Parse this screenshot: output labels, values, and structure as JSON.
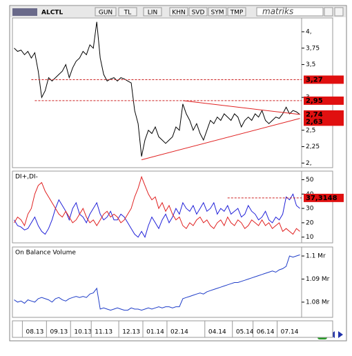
{
  "toolbar": {
    "symbol": "ALCTL",
    "buttons": [
      "GUN",
      "TL",
      "LIN",
      "KHN",
      "SVD",
      "SYM",
      "TMP"
    ],
    "brand": "matriks"
  },
  "chart_data": [
    {
      "type": "line",
      "color": "#000000",
      "ylim": [
        1.93,
        4.21
      ],
      "yticks": [
        {
          "value": 4,
          "label": "4,"
        },
        {
          "value": 3.75,
          "label": "3,75"
        },
        {
          "value": 3.5,
          "label": "3,5"
        },
        {
          "value": 3,
          "label": "3,"
        },
        {
          "value": 2.5,
          "label": "2,5"
        },
        {
          "value": 2.25,
          "label": "2,25"
        },
        {
          "value": 2,
          "label": "2,"
        }
      ],
      "values": [
        3.75,
        3.7,
        3.72,
        3.65,
        3.7,
        3.6,
        3.68,
        3.4,
        3.0,
        3.1,
        3.3,
        3.25,
        3.3,
        3.35,
        3.4,
        3.5,
        3.3,
        3.45,
        3.55,
        3.6,
        3.7,
        3.65,
        3.8,
        3.75,
        4.15,
        3.6,
        3.35,
        3.25,
        3.28,
        3.3,
        3.25,
        3.3,
        3.28,
        3.25,
        3.22,
        2.8,
        2.6,
        2.1,
        2.35,
        2.5,
        2.45,
        2.55,
        2.4,
        2.35,
        2.3,
        2.35,
        2.4,
        2.55,
        2.5,
        2.9,
        2.75,
        2.65,
        2.5,
        2.6,
        2.45,
        2.35,
        2.5,
        2.65,
        2.6,
        2.7,
        2.65,
        2.75,
        2.7,
        2.65,
        2.75,
        2.7,
        2.55,
        2.65,
        2.7,
        2.65,
        2.75,
        2.7,
        2.8,
        2.65,
        2.6,
        2.65,
        2.7,
        2.68,
        2.75,
        2.85,
        2.75,
        2.8,
        2.78,
        2.74
      ],
      "trendline_color": "#e02020",
      "trendlines": [
        {
          "x": [
            49,
            83
          ],
          "y": [
            2.95,
            2.74
          ]
        },
        {
          "x": [
            37,
            83
          ],
          "y": [
            2.05,
            2.68
          ]
        }
      ],
      "levels": [
        {
          "value": 3.27,
          "label": "3,27",
          "dashed": true,
          "start": 5
        },
        {
          "value": 2.95,
          "label": "2,95",
          "dashed": true,
          "start": 6
        },
        {
          "value": 2.74,
          "label": "2,74",
          "dashed": false
        },
        {
          "value": 2.63,
          "label": "2,63",
          "dashed": false
        }
      ]
    },
    {
      "type": "line",
      "title": "DI+,DI-",
      "ylim": [
        6,
        56
      ],
      "yticks": [
        50,
        40,
        30,
        20,
        10
      ],
      "series": [
        {
          "color": "#2020d8",
          "values": [
            22,
            18,
            17,
            15,
            16,
            20,
            24,
            18,
            14,
            12,
            16,
            22,
            30,
            36,
            32,
            28,
            22,
            30,
            34,
            26,
            24,
            20,
            26,
            30,
            34,
            26,
            22,
            24,
            28,
            22,
            22,
            26,
            24,
            20,
            16,
            12,
            10,
            14,
            10,
            18,
            24,
            20,
            16,
            22,
            26,
            20,
            24,
            30,
            26,
            34,
            30,
            28,
            32,
            26,
            30,
            34,
            28,
            30,
            34,
            26,
            30,
            28,
            32,
            26,
            28,
            30,
            24,
            26,
            32,
            28,
            26,
            22,
            24,
            28,
            22,
            20,
            24,
            22,
            26,
            38,
            36,
            40,
            32,
            30
          ]
        },
        {
          "color": "#e02020",
          "values": [
            20,
            24,
            22,
            18,
            26,
            30,
            40,
            46,
            48,
            42,
            38,
            34,
            30,
            26,
            24,
            28,
            24,
            20,
            22,
            26,
            30,
            24,
            20,
            22,
            18,
            22,
            26,
            28,
            24,
            26,
            24,
            20,
            22,
            26,
            30,
            38,
            44,
            52,
            46,
            40,
            36,
            38,
            30,
            34,
            28,
            32,
            26,
            22,
            24,
            18,
            16,
            20,
            18,
            22,
            24,
            20,
            22,
            18,
            16,
            20,
            22,
            18,
            24,
            20,
            18,
            22,
            20,
            16,
            18,
            22,
            20,
            18,
            22,
            18,
            20,
            16,
            18,
            20,
            14,
            16,
            14,
            12,
            16,
            14
          ]
        }
      ],
      "levels": [
        {
          "value": 37.3148,
          "label": "37,3148",
          "dashed": true,
          "start": 62
        }
      ]
    },
    {
      "type": "line",
      "title": "On Balance Volume",
      "color": "#1e3cc8",
      "ylim": [
        1.0734,
        1.1039
      ],
      "yticks": [
        {
          "value": 1.1,
          "label": "1.1 Mr"
        },
        {
          "value": 1.09,
          "label": "1.09 Mr"
        },
        {
          "value": 1.08,
          "label": "1.08 Mr"
        }
      ],
      "values": [
        1.081,
        1.08,
        1.0805,
        1.0795,
        1.081,
        1.0805,
        1.08,
        1.0815,
        1.082,
        1.0815,
        1.081,
        1.08,
        1.0815,
        1.082,
        1.081,
        1.0805,
        1.0815,
        1.082,
        1.0825,
        1.082,
        1.0825,
        1.082,
        1.0835,
        1.084,
        1.086,
        1.077,
        1.0775,
        1.077,
        1.0765,
        1.077,
        1.0775,
        1.077,
        1.0765,
        1.0765,
        1.0775,
        1.077,
        1.077,
        1.0765,
        1.077,
        1.0775,
        1.077,
        1.0775,
        1.078,
        1.0775,
        1.078,
        1.078,
        1.0775,
        1.078,
        1.078,
        1.0815,
        1.082,
        1.0825,
        1.083,
        1.0835,
        1.084,
        1.0835,
        1.0845,
        1.085,
        1.0855,
        1.086,
        1.0865,
        1.087,
        1.0875,
        1.088,
        1.0885,
        1.0885,
        1.089,
        1.0895,
        1.09,
        1.0905,
        1.091,
        1.0915,
        1.092,
        1.0925,
        1.093,
        1.0935,
        1.093,
        1.094,
        1.0945,
        1.0955,
        1.1,
        1.0995,
        1.1,
        1.1005
      ],
      "categories": [
        null,
        null,
        null,
        null,
        null,
        null,
        "08.13",
        null,
        null,
        null,
        null,
        null,
        null,
        "09.13",
        null,
        null,
        null,
        null,
        null,
        null,
        "10.13",
        null,
        null,
        null,
        null,
        null,
        "11.13",
        null,
        null,
        null,
        null,
        null,
        null,
        null,
        "12.13",
        null,
        null,
        null,
        null,
        null,
        null,
        "01.14",
        null,
        null,
        null,
        null,
        null,
        null,
        "02.14",
        null,
        null,
        null,
        null,
        null,
        null,
        null,
        null,
        null,
        null,
        "04.14",
        null,
        null,
        null,
        null,
        null,
        null,
        null,
        "05.14",
        null,
        null,
        null,
        null,
        null,
        "06.14",
        null,
        null,
        null,
        null,
        null,
        null,
        "07.14",
        null,
        null,
        null
      ]
    }
  ]
}
